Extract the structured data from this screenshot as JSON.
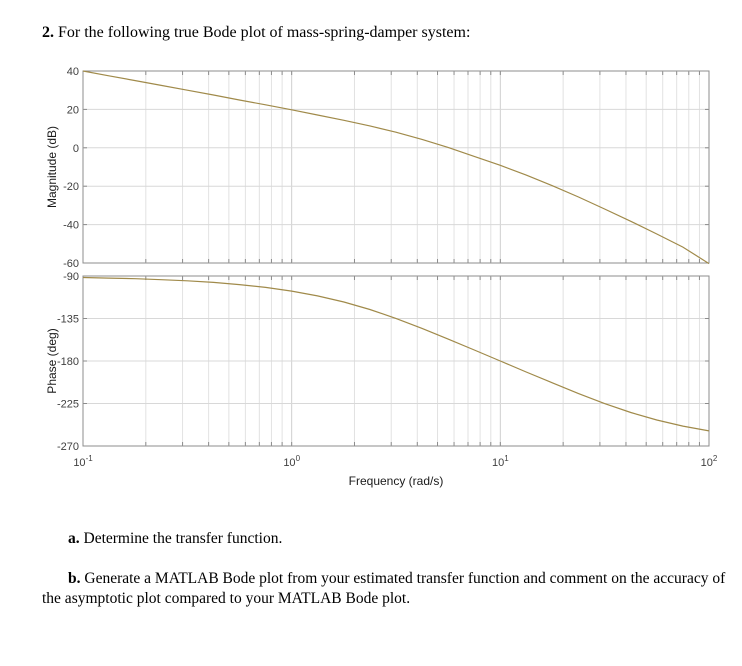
{
  "question": {
    "number": "2.",
    "text": "For the following true Bode plot of mass-spring-damper system:"
  },
  "parts": {
    "a": {
      "label": "a.",
      "text": "Determine the transfer function."
    },
    "b": {
      "label": "b.",
      "text": "Generate a MATLAB Bode plot from your estimated transfer function and comment on the accuracy of the asymptotic plot compared to your MATLAB Bode plot."
    }
  },
  "colors": {
    "curve": "#a08a4a",
    "grid": "#e2e2e2",
    "axis": "#8c8c8c",
    "background": "#ffffff"
  },
  "chart_data": [
    {
      "type": "line",
      "title": "Bode plot - Magnitude",
      "xlabel": "Frequency (rad/s)",
      "ylabel": "Magnitude (dB)",
      "xscale": "log",
      "xlim": [
        0.1,
        100
      ],
      "ylim": [
        -60,
        40
      ],
      "yticks": [
        40,
        20,
        0,
        -20,
        -40,
        -60
      ],
      "xticks": [
        "10^-1",
        "10^0",
        "10^1",
        "10^2"
      ],
      "grid": true,
      "x": [
        0.1,
        0.133,
        0.178,
        0.237,
        0.316,
        0.422,
        0.562,
        0.75,
        1.0,
        1.33,
        1.78,
        2.37,
        3.16,
        4.22,
        5.62,
        7.5,
        10,
        13.3,
        17.8,
        23.7,
        31.6,
        42.2,
        56.2,
        75.0,
        100
      ],
      "series": [
        {
          "name": "Magnitude",
          "values": [
            40.0,
            37.5,
            35.0,
            32.5,
            30.0,
            27.5,
            24.9,
            22.4,
            19.8,
            17.1,
            14.3,
            11.4,
            8.1,
            4.4,
            0.2,
            -4.5,
            -9.1,
            -14.2,
            -19.8,
            -25.6,
            -31.9,
            -38.3,
            -44.9,
            -51.7,
            -60.3
          ]
        }
      ]
    },
    {
      "type": "line",
      "title": "Bode plot - Phase",
      "xlabel": "Frequency (rad/s)",
      "ylabel": "Phase (deg)",
      "xscale": "log",
      "xlim": [
        0.1,
        100
      ],
      "ylim": [
        -270,
        -90
      ],
      "yticks": [
        -90,
        -135,
        -180,
        -225,
        -270
      ],
      "xticks": [
        "10^-1",
        "10^0",
        "10^1",
        "10^2"
      ],
      "grid": true,
      "x": [
        0.1,
        0.133,
        0.178,
        0.237,
        0.316,
        0.422,
        0.562,
        0.75,
        1.0,
        1.33,
        1.78,
        2.37,
        3.16,
        4.22,
        5.62,
        7.5,
        10,
        13.3,
        17.8,
        23.7,
        31.6,
        42.2,
        56.2,
        75.0,
        100
      ],
      "series": [
        {
          "name": "Phase",
          "values": [
            -91.6,
            -92.2,
            -92.9,
            -93.9,
            -95.1,
            -96.8,
            -99.1,
            -102.1,
            -106.0,
            -111.1,
            -117.5,
            -125.5,
            -134.9,
            -145.5,
            -156.8,
            -168.4,
            -180.0,
            -191.6,
            -203.2,
            -214.5,
            -225.1,
            -234.5,
            -242.5,
            -248.9,
            -254.0
          ]
        }
      ]
    }
  ],
  "axes": {
    "mag_ylabel": "Magnitude (dB)",
    "phase_ylabel": "Phase (deg)",
    "xlabel": "Frequency  (rad/s)",
    "mag_ticks": [
      "40",
      "20",
      "0",
      "-20",
      "-40",
      "-60"
    ],
    "phase_ticks": [
      "-90",
      "-135",
      "-180",
      "-225",
      "-270"
    ],
    "x_tick_bases": [
      "10",
      "10",
      "10",
      "10"
    ],
    "x_tick_exps": [
      "-1",
      "0",
      "1",
      "2"
    ]
  }
}
